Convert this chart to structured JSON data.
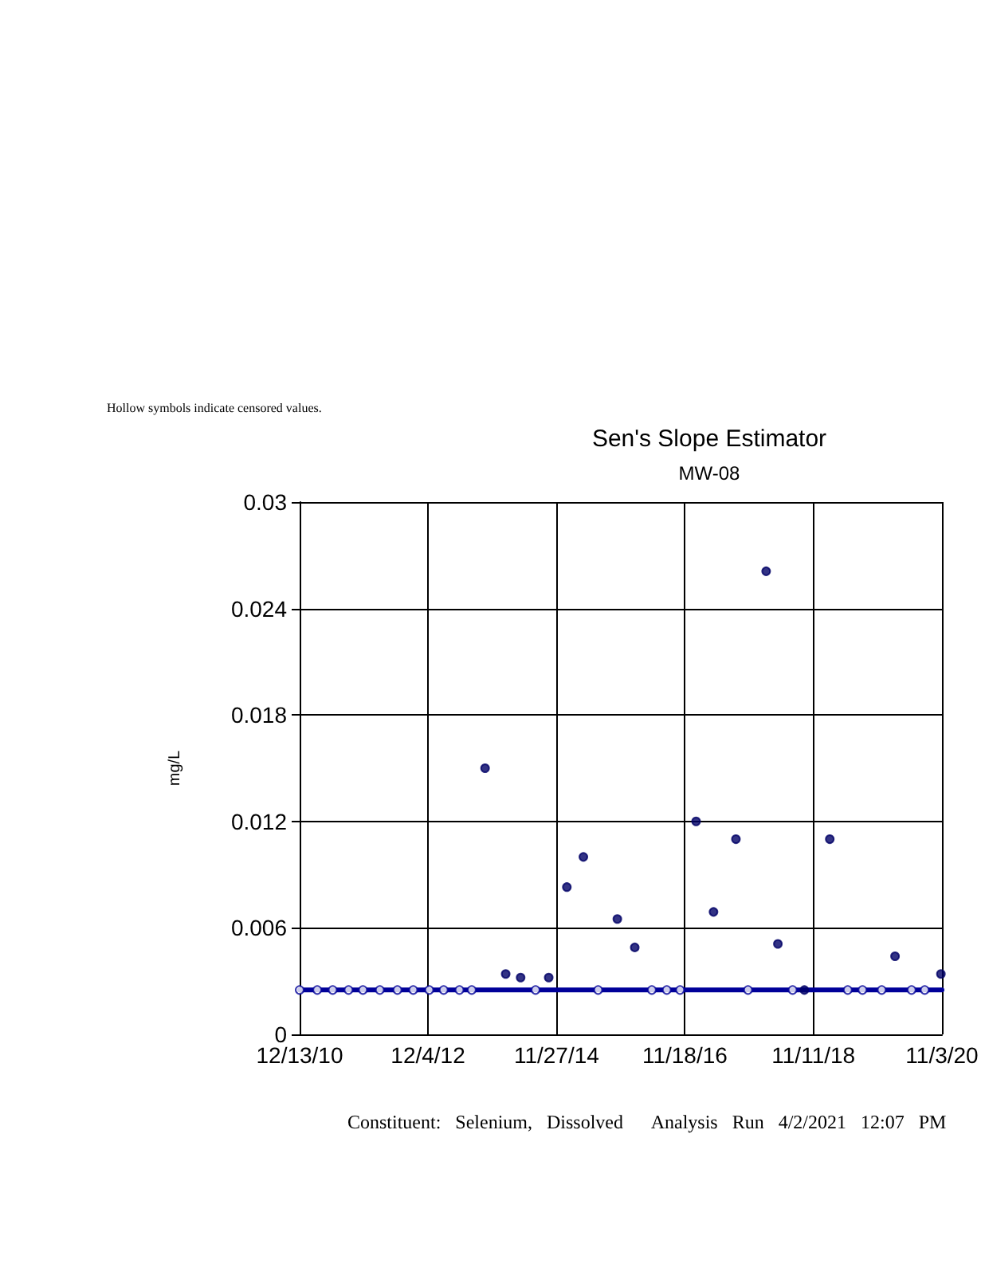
{
  "chart_data": {
    "type": "scatter",
    "title": "Sen's Slope Estimator",
    "subtitle": "MW-08",
    "ylabel": "mg/L",
    "annotations": [
      "Hollow symbols indicate censored values.",
      "Constituent:   Selenium,   Dissolved      Analysis   Run   4/2/2021   12:07   PM"
    ],
    "xlim": [
      "2010-12-13",
      "2020-11-03"
    ],
    "xticks": [
      {
        "value": "2010-12-13",
        "label": "12/13/10"
      },
      {
        "value": "2012-12-04",
        "label": "12/4/12"
      },
      {
        "value": "2014-11-27",
        "label": "11/27/14"
      },
      {
        "value": "2016-11-18",
        "label": "11/18/16"
      },
      {
        "value": "2018-11-11",
        "label": "11/11/18"
      },
      {
        "value": "2020-11-03",
        "label": "11/3/20"
      }
    ],
    "ylim": [
      0,
      0.03
    ],
    "yticks": [
      0,
      0.006,
      0.012,
      0.018,
      0.024,
      0.03
    ],
    "grid": true,
    "marker": "circle",
    "series": [
      {
        "type": "line",
        "color": "#000099",
        "marker": "none",
        "x": [
          "2010-12-13",
          "2020-11-03"
        ],
        "values": [
          0.0025,
          0.0025
        ]
      },
      {
        "color": "#ffffff",
        "x": [
          "2010-12-13",
          "2011-03-22",
          "2011-06-17",
          "2011-09-14",
          "2011-12-04",
          "2012-03-08",
          "2012-06-15",
          "2012-09-12",
          "2012-12-11",
          "2013-03-02",
          "2013-05-30",
          "2013-08-07",
          "2014-08-01",
          "2015-07-19",
          "2016-05-16",
          "2016-08-08",
          "2016-10-22",
          "2017-11-08",
          "2018-07-17",
          "2019-05-23",
          "2019-08-14",
          "2019-11-30",
          "2020-05-16",
          "2020-07-29"
        ],
        "values": [
          0.0025,
          0.0025,
          0.0025,
          0.0025,
          0.0025,
          0.0025,
          0.0025,
          0.0025,
          0.0025,
          0.0025,
          0.0025,
          0.0025,
          0.0025,
          0.0025,
          0.0025,
          0.0025,
          0.0025,
          0.0025,
          0.0025,
          0.0025,
          0.0025,
          0.0025,
          0.0025,
          0.0025
        ]
      },
      {
        "color": "#000066",
        "x": [
          "2013-10-21",
          "2014-02-14",
          "2014-05-09",
          "2014-10-14",
          "2015-01-24",
          "2015-04-27",
          "2015-11-04",
          "2016-02-10",
          "2017-01-20",
          "2017-04-28",
          "2017-09-01",
          "2018-02-18",
          "2018-04-25",
          "2018-09-21",
          "2019-02-11",
          "2020-02-13",
          "2020-10-28"
        ],
        "values": [
          0.015,
          0.0034,
          0.0032,
          0.0032,
          0.0083,
          0.01,
          0.0065,
          0.0049,
          0.012,
          0.0069,
          0.011,
          0.0261,
          0.0051,
          0.0025,
          0.011,
          0.0044,
          0.0034
        ]
      }
    ]
  }
}
